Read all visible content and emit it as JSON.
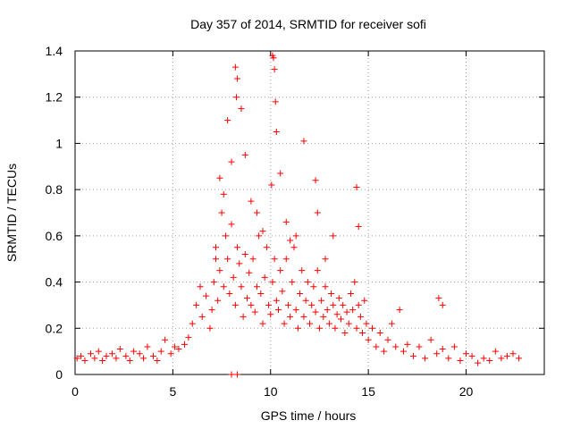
{
  "chart_data": {
    "type": "scatter",
    "title": "Day 357 of 2014, SRMTID for receiver sofi",
    "xlabel": "GPS time / hours",
    "ylabel": "SRMTID / TECUs",
    "xlim": [
      0,
      24
    ],
    "ylim": [
      0,
      1.4
    ],
    "xticks": [
      "0",
      "5",
      "10",
      "15",
      "20"
    ],
    "yticks": [
      "0",
      "0.2",
      "0.4",
      "0.6",
      "0.8",
      "1",
      "1.2",
      "1.4"
    ],
    "grid": true,
    "marker": "+",
    "color": "#ff0000",
    "series": [
      {
        "name": "SRMTID",
        "x": [
          0.1,
          0.3,
          0.5,
          0.8,
          1.0,
          1.2,
          1.4,
          1.6,
          1.9,
          2.1,
          2.3,
          2.6,
          2.8,
          3.0,
          3.3,
          3.5,
          3.7,
          4.0,
          4.2,
          4.4,
          4.6,
          4.9,
          5.1,
          5.3,
          5.6,
          5.8,
          6.0,
          6.2,
          6.4,
          6.5,
          6.7,
          6.9,
          7.0,
          7.1,
          7.2,
          7.3,
          7.4,
          7.5,
          7.6,
          7.7,
          7.8,
          7.9,
          8.0,
          8.1,
          8.2,
          8.3,
          8.4,
          8.5,
          8.6,
          8.7,
          8.8,
          8.9,
          9.0,
          9.1,
          9.2,
          9.3,
          9.4,
          9.5,
          9.6,
          9.7,
          9.8,
          9.9,
          10.0,
          10.1,
          10.2,
          10.3,
          10.4,
          10.5,
          10.6,
          10.7,
          10.8,
          10.9,
          11.0,
          11.1,
          11.2,
          11.3,
          11.4,
          11.5,
          11.6,
          11.7,
          11.8,
          11.9,
          12.0,
          12.1,
          12.2,
          12.3,
          12.4,
          12.5,
          12.6,
          12.7,
          12.8,
          12.9,
          13.0,
          13.1,
          13.2,
          13.3,
          13.4,
          13.5,
          13.6,
          13.7,
          13.8,
          13.9,
          14.0,
          14.1,
          14.2,
          14.3,
          14.4,
          14.5,
          14.6,
          14.7,
          14.8,
          14.9,
          15.0,
          15.2,
          15.4,
          15.6,
          15.8,
          16.0,
          16.2,
          16.4,
          16.6,
          16.8,
          17.0,
          17.3,
          17.6,
          17.9,
          18.2,
          18.5,
          18.8,
          19.1,
          19.4,
          19.7,
          20.0,
          20.3,
          20.6,
          20.9,
          21.2,
          21.5,
          21.8,
          22.1,
          22.4,
          22.7,
          7.4,
          7.6,
          7.8,
          8.0,
          8.2,
          8.3,
          8.5,
          8.7,
          9.0,
          9.3,
          10.1,
          10.15,
          10.2,
          10.25,
          10.3,
          10.5,
          10.8,
          11.3,
          11.7,
          12.3,
          12.4,
          14.4,
          14.5,
          8.0,
          8.3,
          9.6,
          11.0,
          12.8,
          13.2,
          18.6,
          18.8,
          7.2,
          8.25,
          10.05
        ],
        "y": [
          0.07,
          0.08,
          0.06,
          0.09,
          0.07,
          0.1,
          0.06,
          0.08,
          0.09,
          0.07,
          0.11,
          0.08,
          0.06,
          0.1,
          0.09,
          0.07,
          0.12,
          0.08,
          0.06,
          0.1,
          0.15,
          0.09,
          0.12,
          0.11,
          0.13,
          0.16,
          0.22,
          0.3,
          0.38,
          0.25,
          0.34,
          0.2,
          0.28,
          0.4,
          0.55,
          0.32,
          0.45,
          0.7,
          0.38,
          0.6,
          0.5,
          0.35,
          0.65,
          0.42,
          0.3,
          0.55,
          0.48,
          0.38,
          0.25,
          0.52,
          0.33,
          0.44,
          0.3,
          0.5,
          0.27,
          0.38,
          0.6,
          0.35,
          0.22,
          0.42,
          0.55,
          0.3,
          0.26,
          0.4,
          0.5,
          0.32,
          0.28,
          0.45,
          0.36,
          0.22,
          0.5,
          0.3,
          0.25,
          0.4,
          0.55,
          0.28,
          0.2,
          0.35,
          0.45,
          0.25,
          0.32,
          0.4,
          0.22,
          0.3,
          0.38,
          0.27,
          0.45,
          0.2,
          0.32,
          0.25,
          0.38,
          0.28,
          0.22,
          0.35,
          0.3,
          0.2,
          0.26,
          0.33,
          0.24,
          0.3,
          0.18,
          0.27,
          0.22,
          0.35,
          0.28,
          0.4,
          0.2,
          0.3,
          0.25,
          0.18,
          0.32,
          0.22,
          0.15,
          0.2,
          0.12,
          0.18,
          0.1,
          0.15,
          0.22,
          0.12,
          0.28,
          0.1,
          0.13,
          0.08,
          0.12,
          0.07,
          0.15,
          0.09,
          0.11,
          0.07,
          0.12,
          0.06,
          0.09,
          0.08,
          0.05,
          0.07,
          0.06,
          0.1,
          0.07,
          0.08,
          0.09,
          0.07,
          0.85,
          0.78,
          1.1,
          0.92,
          1.33,
          1.28,
          1.15,
          0.95,
          0.75,
          0.7,
          1.38,
          1.37,
          1.32,
          1.18,
          1.05,
          0.87,
          0.66,
          0.6,
          1.01,
          0.84,
          0.7,
          0.81,
          0.64,
          0.0,
          0.0,
          0.62,
          0.58,
          0.5,
          0.6,
          0.33,
          0.3,
          0.5,
          1.2,
          0.82
        ]
      }
    ]
  }
}
